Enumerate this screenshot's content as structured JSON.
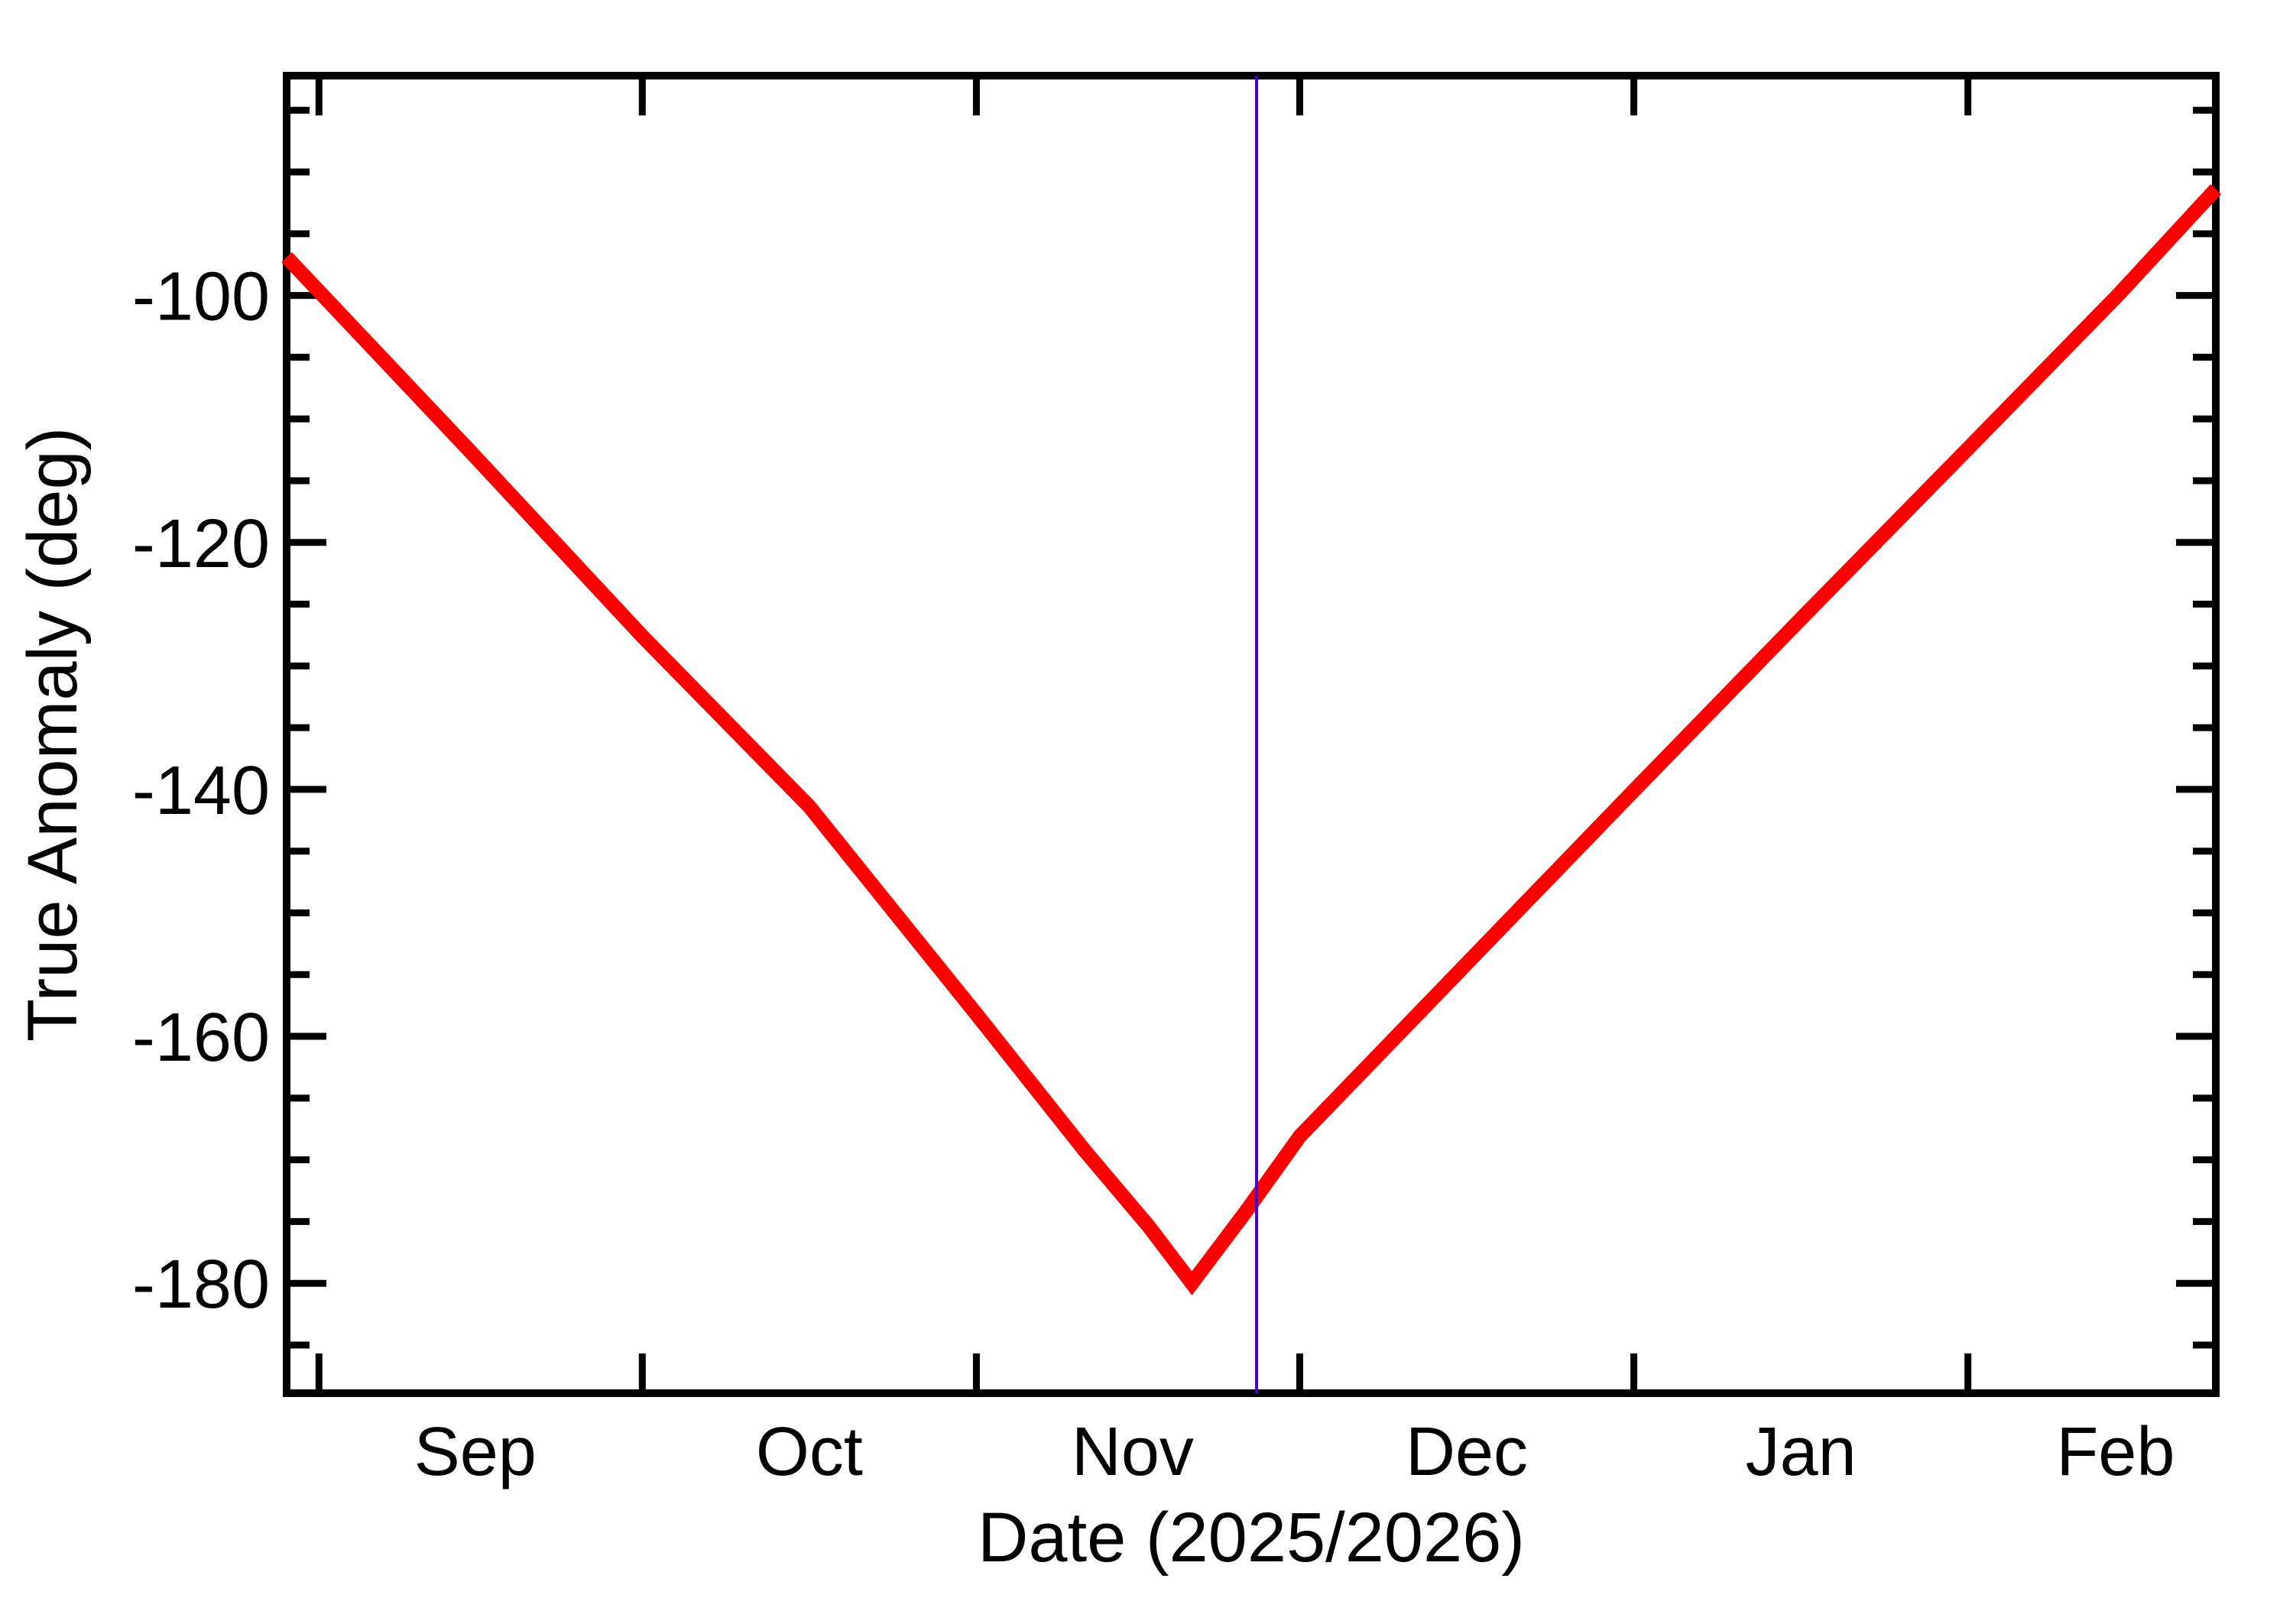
{
  "colors": {
    "background": "#ffffff",
    "axis": "#000000",
    "curve": "#ff0000",
    "marker": "#4400cc"
  },
  "chart_data": {
    "type": "line",
    "title": "",
    "xlabel": "Date (2025/2026)",
    "ylabel": "True Anomaly (deg)",
    "grid": false,
    "legend": false,
    "x_axis": {
      "tick_labels": [
        "Sep",
        "Oct",
        "Nov",
        "Dec",
        "Jan",
        "Feb"
      ],
      "month_start_days": [
        0,
        30,
        61,
        91,
        122,
        153
      ],
      "month_label_days": [
        14.5,
        45.5,
        75.5,
        106.5,
        137.5,
        166.7
      ],
      "xlim_days": [
        -3,
        176
      ],
      "day_zero_date": "Sep 1 2025"
    },
    "y_axis": {
      "major_ticks": [
        -100,
        -120,
        -140,
        -160,
        -180
      ],
      "minor_tick_step": 5,
      "minor_tick_range": [
        -185,
        -85
      ],
      "ylim": [
        -188.9,
        -82.2
      ],
      "units": "deg"
    },
    "series": [
      {
        "name": "true-anomaly",
        "color": "#ff0000",
        "line_width": 19,
        "point_dates": [
          "Aug 29",
          "Sep 15",
          "Oct 1",
          "Oct 16",
          "Nov 1",
          "Nov 11",
          "Nov 17",
          "Nov 21",
          "Nov 26",
          "Dec 1",
          "Dec 16",
          "Jan 1",
          "Jan 16",
          "Feb 1",
          "Feb 15",
          "Feb 24"
        ],
        "points": [
          [
            -3,
            -96.9
          ],
          [
            14,
            -112.6
          ],
          [
            30,
            -127.6
          ],
          [
            45.5,
            -141.4
          ],
          [
            61,
            -158.2
          ],
          [
            71,
            -169.2
          ],
          [
            77,
            -175.4
          ],
          [
            81,
            -180.0
          ],
          [
            86,
            -174.2
          ],
          [
            91,
            -168.1
          ],
          [
            106.5,
            -154.1
          ],
          [
            122,
            -140.1
          ],
          [
            137.5,
            -126.2
          ],
          [
            153,
            -112.4
          ],
          [
            167,
            -99.9
          ],
          [
            176,
            -91.4
          ]
        ],
        "minimum": {
          "date": "Nov 21",
          "value": -180.0
        }
      }
    ],
    "vertical_marker": {
      "date": "Nov 27",
      "day": 87,
      "color": "#4400cc",
      "line_width": 4
    }
  }
}
